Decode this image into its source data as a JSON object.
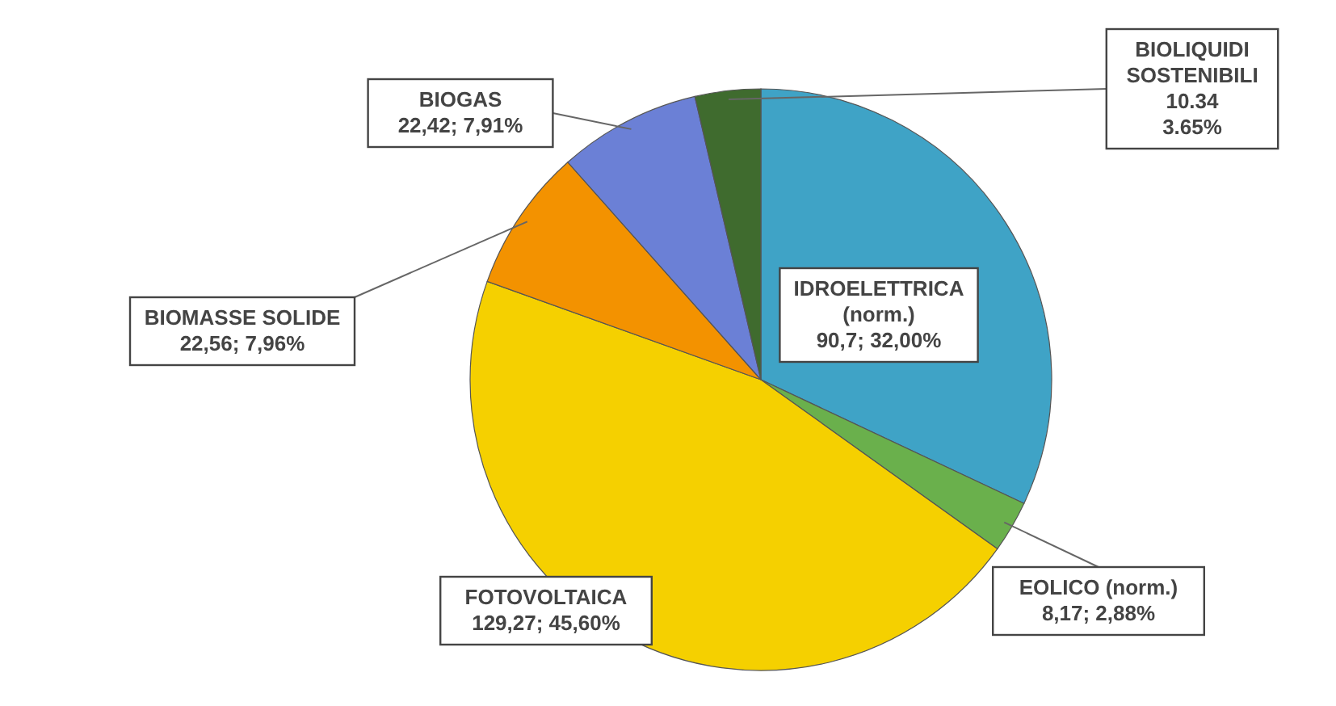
{
  "chart_data": {
    "type": "pie",
    "categories": [
      "IDROELETTRICA\n(norm.)",
      "EOLICO (norm.)",
      "FOTOVOLTAICA",
      "BIOMASSE SOLIDE",
      "BIOGAS",
      "BIOLIQUIDI\nSOSTENIBILI"
    ],
    "values": [
      90.7,
      8.17,
      129.27,
      22.56,
      22.42,
      10.34
    ],
    "value_labels": [
      "90,7; 32,00%",
      "8,17; 2,88%",
      "129,27; 45,60%",
      "22,56; 7,96%",
      "22,42; 7,91%",
      "10.34\n3.65%"
    ],
    "colors": [
      "#3fa3c6",
      "#6ab04c",
      "#f5d000",
      "#f39200",
      "#6b80d6",
      "#3f6b2e"
    ]
  }
}
